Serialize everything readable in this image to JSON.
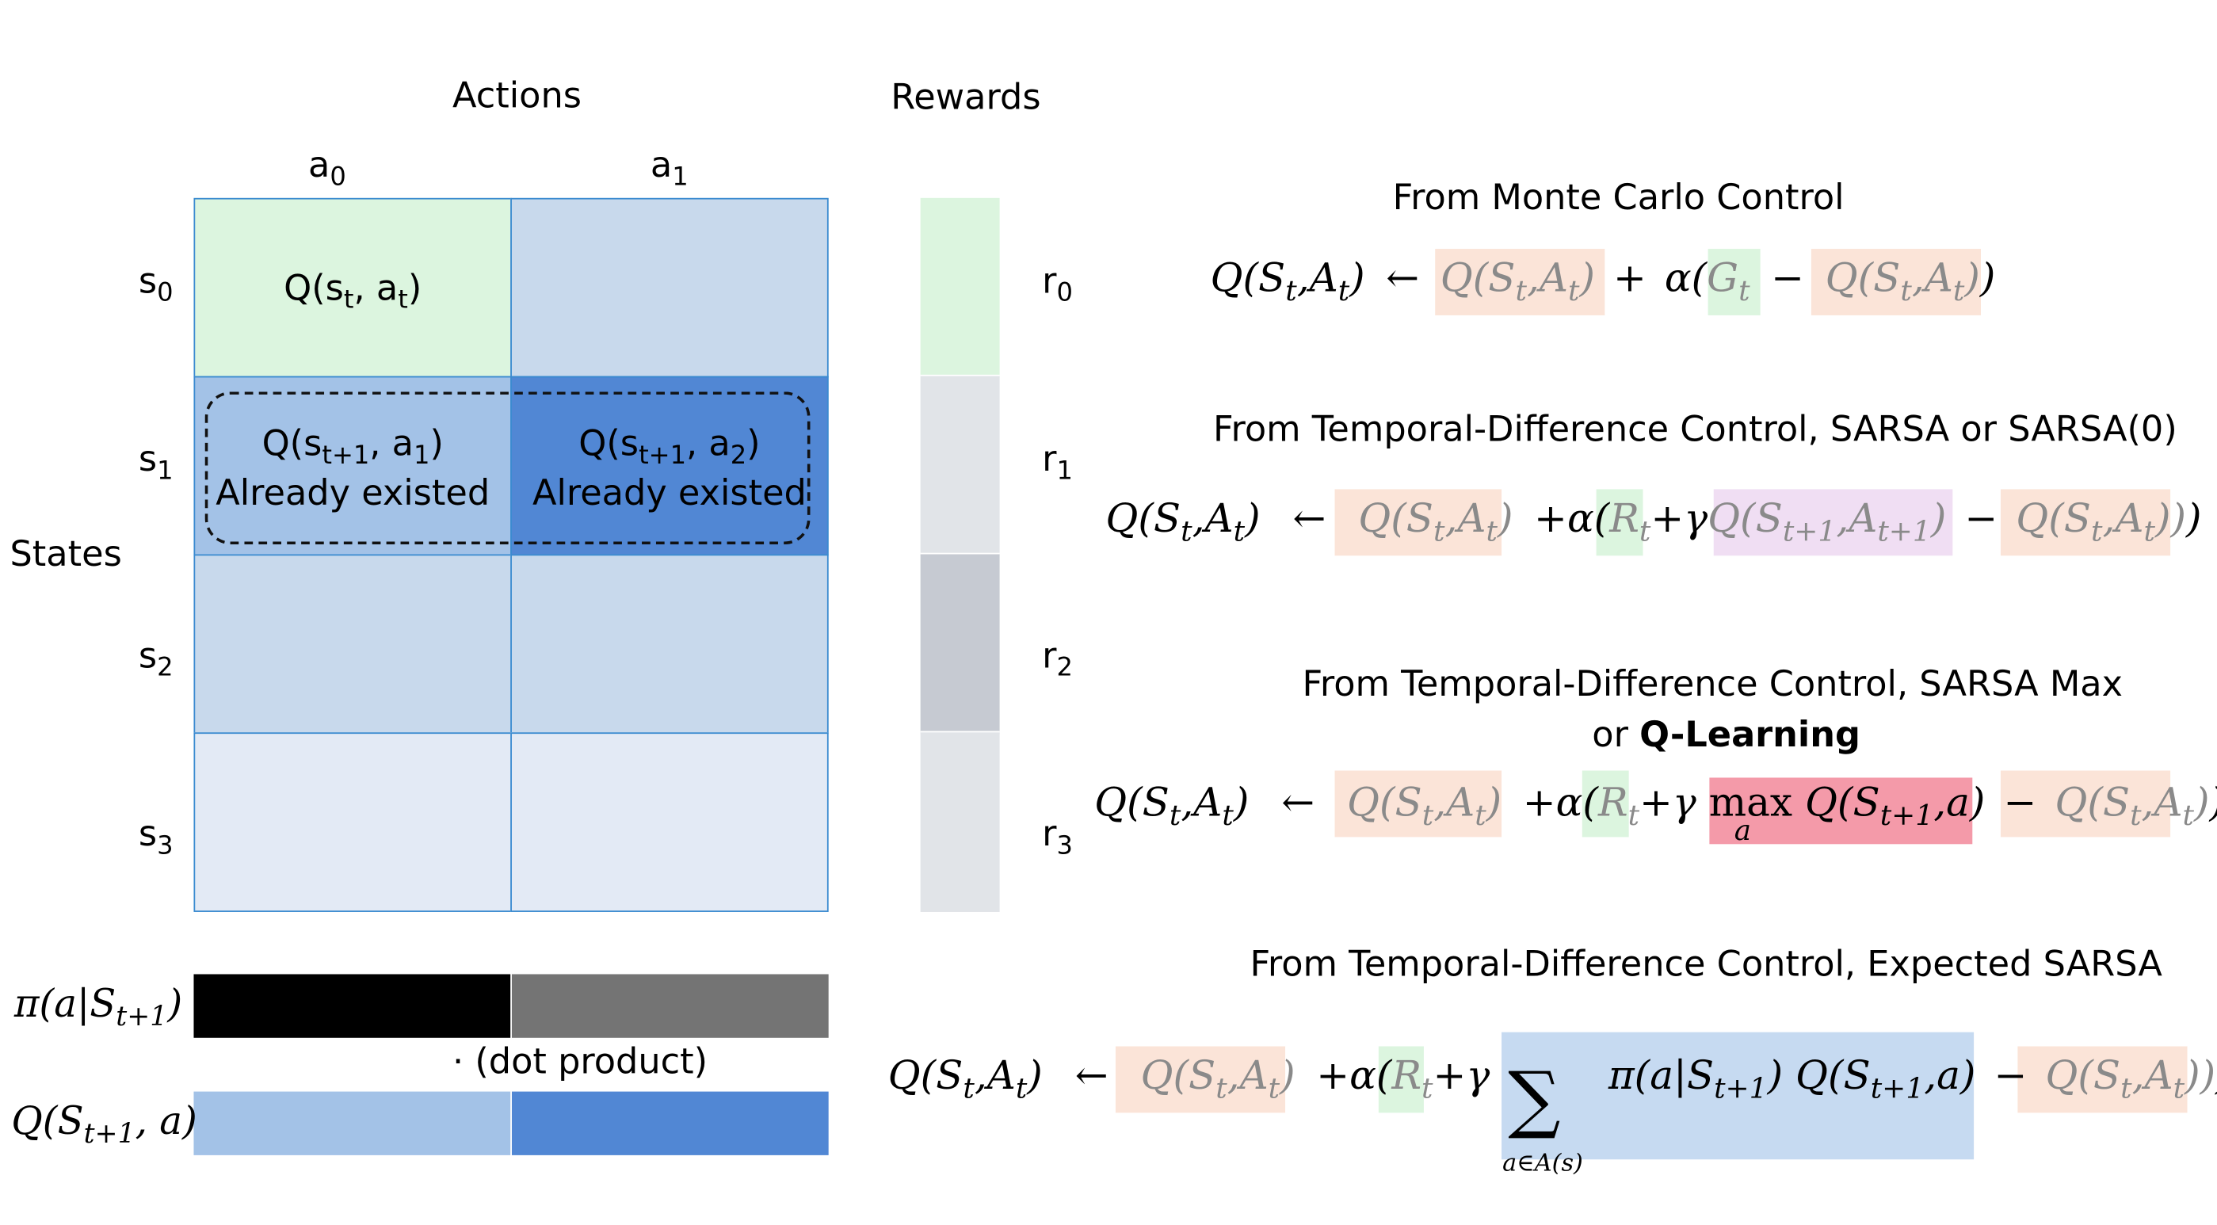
{
  "headers": {
    "actions": "Actions",
    "rewards": "Rewards",
    "states": "States"
  },
  "actions": [
    {
      "base": "a",
      "sub": "0"
    },
    {
      "base": "a",
      "sub": "1"
    }
  ],
  "states": [
    {
      "base": "s",
      "sub": "0"
    },
    {
      "base": "s",
      "sub": "1"
    },
    {
      "base": "s",
      "sub": "2"
    },
    {
      "base": "s",
      "sub": "3"
    }
  ],
  "rewards": [
    {
      "base": "r",
      "sub": "0"
    },
    {
      "base": "r",
      "sub": "1"
    },
    {
      "base": "r",
      "sub": "2"
    },
    {
      "base": "r",
      "sub": "3"
    }
  ],
  "table": {
    "q_current": {
      "pre": "Q(s",
      "sub1": "t",
      "mid": ", a",
      "sub2": "t",
      "post": ")"
    },
    "q_next_a1": {
      "pre": "Q(s",
      "sub1": "t+1",
      "mid": ", a",
      "sub2": "1",
      "post": ")",
      "note": "Already existed"
    },
    "q_next_a2": {
      "pre": "Q(s",
      "sub1": "t+1",
      "mid": ", a",
      "sub2": "2",
      "post": ")",
      "note": "Already existed"
    }
  },
  "bottom": {
    "policy_label": {
      "pre": "π(a|S",
      "sub": "t+1",
      "post": ")"
    },
    "q_label": {
      "pre": "Q(S",
      "sub": "t+1",
      "post": ", a)"
    },
    "dot_product": "· (dot product)"
  },
  "sections": {
    "mc": {
      "title": "From Monte Carlo Control"
    },
    "sarsa": {
      "title": "From Temporal-Difference Control, SARSA or SARSA(0)"
    },
    "qlearning": {
      "title_line1": "From Temporal-Difference Control, SARSA Max",
      "title_line2_prefix": "or ",
      "title_line2_bold": "Q-Learning"
    },
    "expected": {
      "title": "From Temporal-Difference Control, Expected SARSA"
    }
  },
  "equations": {
    "Q": "Q",
    "S": "S",
    "A": "A",
    "t": "t",
    "t1": "t+1",
    "arrow": "←",
    "plus": "+",
    "minus": "−",
    "alpha": "α",
    "gamma": "γ",
    "G": "G",
    "R": "R",
    "max": "max",
    "a": "a",
    "sum": "∑",
    "sum_index": "a∈A(s)",
    "pi": "π",
    "bar": "|",
    "lp": "(",
    "rp": ")",
    "comma": ","
  },
  "colors": {
    "green": "#dcf5df",
    "blue_light": "#c8d9ec",
    "blue_mid": "#a3c2e7",
    "blue_dark": "#5187d4",
    "blue_pale": "#e3eaf5",
    "gray_light": "#e1e4e8",
    "gray_mid": "#c6cad2",
    "black": "#000000",
    "gray_bar": "#747474",
    "peach": "#fbe4d8",
    "purple": "#f0def3",
    "red": "#f49aa9",
    "sum_box": "#c6daf1",
    "cell_border": "#3b8bd0"
  }
}
